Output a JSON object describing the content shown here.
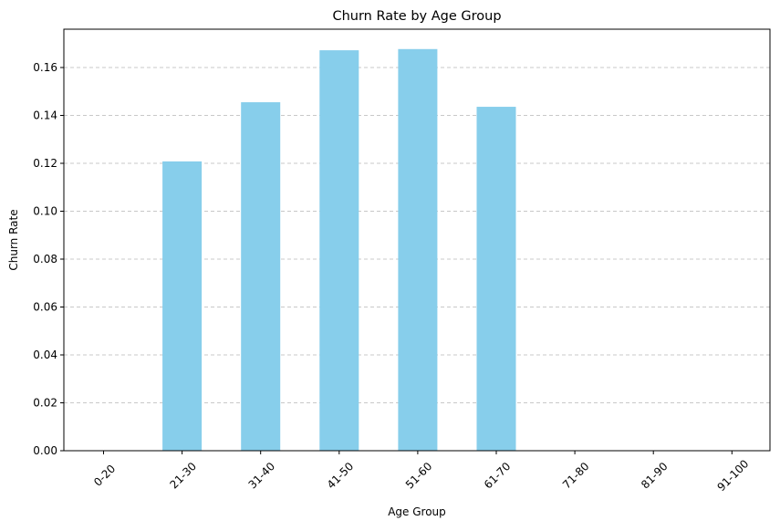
{
  "chart_data": {
    "type": "bar",
    "title": "Churn Rate by Age Group",
    "xlabel": "Age Group",
    "ylabel": "Churn Rate",
    "categories": [
      "0-20",
      "21-30",
      "31-40",
      "41-50",
      "51-60",
      "61-70",
      "71-80",
      "81-90",
      "91-100"
    ],
    "values": [
      0,
      0.1208,
      0.1455,
      0.1672,
      0.1677,
      0.1436,
      0,
      0,
      0
    ],
    "ylim": [
      0,
      0.176
    ],
    "yticks": [
      "0.00",
      "0.02",
      "0.04",
      "0.06",
      "0.08",
      "0.10",
      "0.12",
      "0.14",
      "0.16"
    ],
    "ytick_values": [
      0,
      0.02,
      0.04,
      0.06,
      0.08,
      0.1,
      0.12,
      0.14,
      0.16
    ],
    "bar_color": "#87ceeb",
    "grid": "y-dashed",
    "grid_color": "#c8c8c8",
    "legend": "none"
  }
}
